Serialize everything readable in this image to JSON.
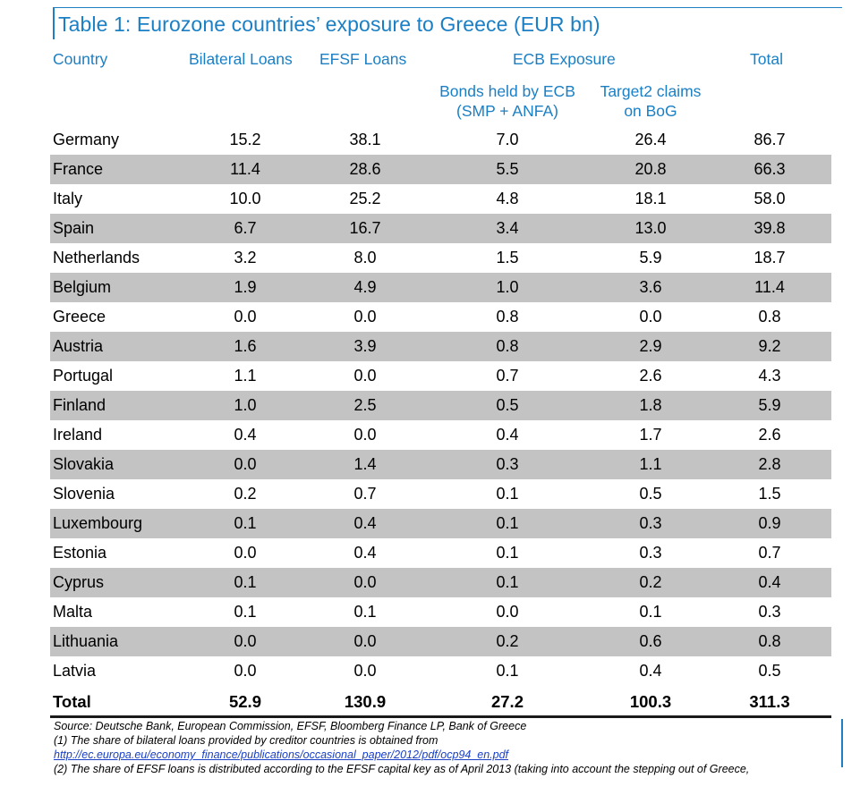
{
  "title": "Table 1: Eurozone countries’ exposure to Greece (EUR bn)",
  "headers": {
    "country": "Country",
    "bilateral": "Bilateral Loans",
    "efsf": "EFSF Loans",
    "ecb": "ECB Exposure",
    "total": "Total",
    "bonds_line1": "Bonds held by ECB",
    "bonds_line2": "(SMP + ANFA)",
    "target2_line1": "Target2 claims",
    "target2_line2": "on BoG"
  },
  "rows": [
    {
      "country": "Germany",
      "bilateral": "15.2",
      "efsf": "38.1",
      "bonds": "7.0",
      "target2": "26.4",
      "total": "86.7"
    },
    {
      "country": "France",
      "bilateral": "11.4",
      "efsf": "28.6",
      "bonds": "5.5",
      "target2": "20.8",
      "total": "66.3"
    },
    {
      "country": "Italy",
      "bilateral": "10.0",
      "efsf": "25.2",
      "bonds": "4.8",
      "target2": "18.1",
      "total": "58.0"
    },
    {
      "country": "Spain",
      "bilateral": "6.7",
      "efsf": "16.7",
      "bonds": "3.4",
      "target2": "13.0",
      "total": "39.8"
    },
    {
      "country": "Netherlands",
      "bilateral": "3.2",
      "efsf": "8.0",
      "bonds": "1.5",
      "target2": "5.9",
      "total": "18.7"
    },
    {
      "country": "Belgium",
      "bilateral": "1.9",
      "efsf": "4.9",
      "bonds": "1.0",
      "target2": "3.6",
      "total": "11.4"
    },
    {
      "country": "Greece",
      "bilateral": "0.0",
      "efsf": "0.0",
      "bonds": "0.8",
      "target2": "0.0",
      "total": "0.8"
    },
    {
      "country": "Austria",
      "bilateral": "1.6",
      "efsf": "3.9",
      "bonds": "0.8",
      "target2": "2.9",
      "total": "9.2"
    },
    {
      "country": "Portugal",
      "bilateral": "1.1",
      "efsf": "0.0",
      "bonds": "0.7",
      "target2": "2.6",
      "total": "4.3"
    },
    {
      "country": "Finland",
      "bilateral": "1.0",
      "efsf": "2.5",
      "bonds": "0.5",
      "target2": "1.8",
      "total": "5.9"
    },
    {
      "country": "Ireland",
      "bilateral": "0.4",
      "efsf": "0.0",
      "bonds": "0.4",
      "target2": "1.7",
      "total": "2.6"
    },
    {
      "country": "Slovakia",
      "bilateral": "0.0",
      "efsf": "1.4",
      "bonds": "0.3",
      "target2": "1.1",
      "total": "2.8"
    },
    {
      "country": "Slovenia",
      "bilateral": "0.2",
      "efsf": "0.7",
      "bonds": "0.1",
      "target2": "0.5",
      "total": "1.5"
    },
    {
      "country": "Luxembourg",
      "bilateral": "0.1",
      "efsf": "0.4",
      "bonds": "0.1",
      "target2": "0.3",
      "total": "0.9"
    },
    {
      "country": "Estonia",
      "bilateral": "0.0",
      "efsf": "0.4",
      "bonds": "0.1",
      "target2": "0.3",
      "total": "0.7"
    },
    {
      "country": "Cyprus",
      "bilateral": "0.1",
      "efsf": "0.0",
      "bonds": "0.1",
      "target2": "0.2",
      "total": "0.4"
    },
    {
      "country": "Malta",
      "bilateral": "0.1",
      "efsf": "0.1",
      "bonds": "0.0",
      "target2": "0.1",
      "total": "0.3"
    },
    {
      "country": "Lithuania",
      "bilateral": "0.0",
      "efsf": "0.0",
      "bonds": "0.2",
      "target2": "0.6",
      "total": "0.8"
    },
    {
      "country": "Latvia",
      "bilateral": "0.0",
      "efsf": "0.0",
      "bonds": "0.1",
      "target2": "0.4",
      "total": "0.5"
    }
  ],
  "total_row": {
    "country": "Total",
    "bilateral": "52.9",
    "efsf": "130.9",
    "bonds": "27.2",
    "target2": "100.3",
    "total": "311.3"
  },
  "footer": {
    "source": "Source: Deutsche Bank, European Commission, EFSF, Bloomberg Finance LP, Bank of Greece",
    "note1": "(1) The share of bilateral loans provided by creditor countries is obtained from",
    "link": "http://ec.europa.eu/economy_finance/publications/occasional_paper/2012/pdf/ocp94_en.pdf",
    "note2": "(2) The share of EFSF loans is distributed according to the EFSF capital key as of April 2013 (taking into account the stepping out of Greece,"
  },
  "colors": {
    "accent": "#1a7fc4",
    "shade": "#c3c3c3",
    "link": "#1a3fc4"
  }
}
